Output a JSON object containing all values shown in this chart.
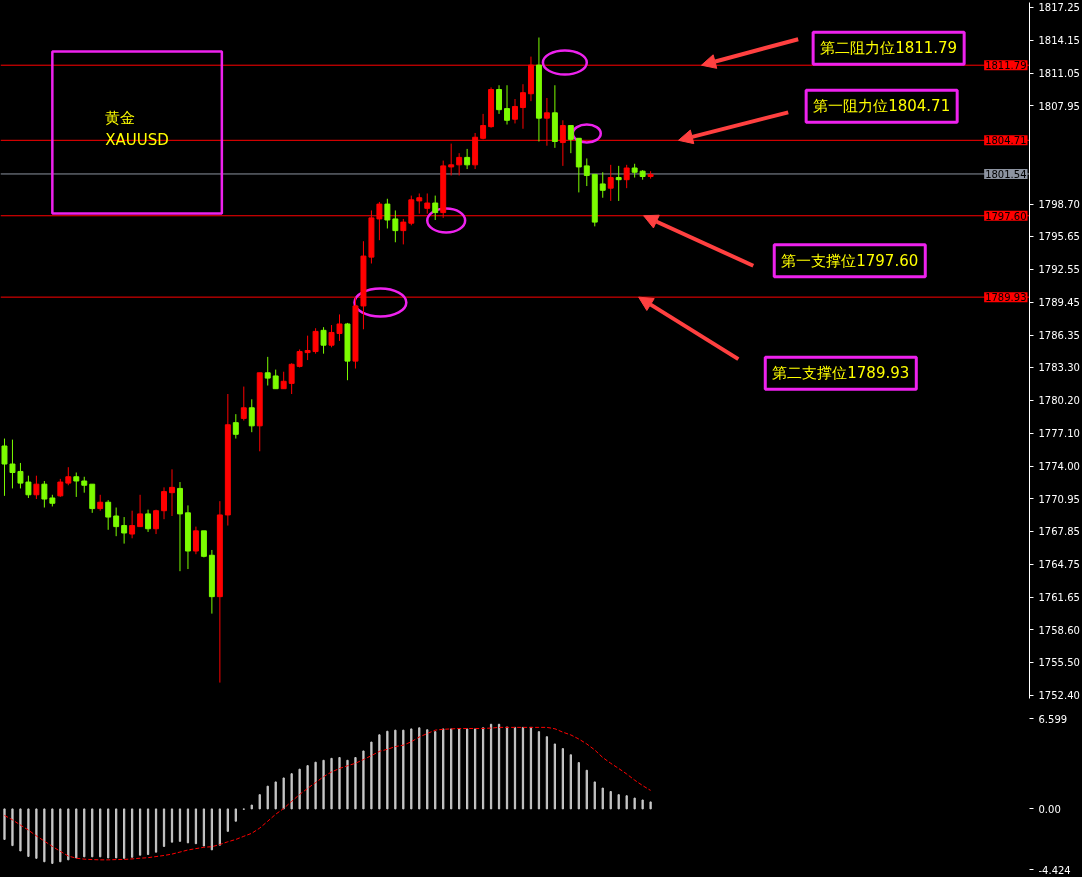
{
  "chart_data": [
    {
      "type": "candlestick",
      "title": "黄金",
      "subtitle": "XAUUSD",
      "categories": [
        null,
        null,
        null,
        null,
        null,
        null,
        null,
        null,
        null,
        null,
        null,
        null,
        null,
        null,
        null,
        null,
        null,
        null,
        null,
        null,
        null,
        null,
        null,
        null,
        null,
        null,
        null,
        null,
        null,
        null,
        null,
        null,
        null,
        null,
        null,
        null,
        null,
        null,
        null,
        null,
        null,
        null,
        null,
        null,
        null,
        null,
        null,
        null,
        null,
        null,
        null,
        null,
        null,
        null,
        null,
        null,
        null,
        null,
        null,
        null,
        null,
        null,
        null,
        null,
        null,
        null,
        null,
        null,
        null,
        null,
        null,
        null,
        null,
        null,
        null,
        null,
        null,
        null,
        null,
        null,
        null,
        null,
        null,
        null,
        null,
        null,
        null,
        null,
        null,
        null,
        null,
        null,
        null,
        null,
        null,
        null,
        null,
        null,
        null,
        null,
        null,
        null,
        null,
        null,
        null,
        null,
        null,
        null,
        null,
        null,
        null,
        null,
        null,
        null,
        null,
        null,
        null,
        null,
        null,
        null,
        null,
        null,
        null,
        null,
        null,
        null,
        null,
        null,
        null
      ],
      "ohlc": [
        [
          1775.9,
          1776.6,
          1771.2,
          1774.2
        ],
        [
          1774.2,
          1776.5,
          1771.9,
          1773.4
        ],
        [
          1773.5,
          1774.3,
          1771.9,
          1772.4
        ],
        [
          1772.5,
          1773.1,
          1771.0,
          1771.3
        ],
        [
          1771.3,
          1773.1,
          1770.9,
          1772.3
        ],
        [
          1772.3,
          1772.6,
          1770.1,
          1770.9
        ],
        [
          1771.0,
          1771.3,
          1770.2,
          1770.5
        ],
        [
          1771.2,
          1772.8,
          1771.1,
          1772.5
        ],
        [
          1772.4,
          1773.9,
          1772.2,
          1773.0
        ],
        [
          1773.0,
          1773.4,
          1771.1,
          1772.6
        ],
        [
          1772.6,
          1773.0,
          1771.5,
          1772.2
        ],
        [
          1772.3,
          1772.3,
          1769.6,
          1770.0
        ],
        [
          1770.0,
          1771.3,
          1769.8,
          1770.6
        ],
        [
          1770.6,
          1770.8,
          1768.0,
          1769.2
        ],
        [
          1769.3,
          1770.1,
          1767.4,
          1768.3
        ],
        [
          1768.4,
          1769.2,
          1766.7,
          1767.7
        ],
        [
          1767.6,
          1769.8,
          1767.2,
          1768.4
        ],
        [
          1768.3,
          1771.3,
          1768.3,
          1769.5
        ],
        [
          1769.5,
          1769.9,
          1767.8,
          1768.1
        ],
        [
          1768.1,
          1769.9,
          1767.6,
          1769.8
        ],
        [
          1769.8,
          1772.0,
          1769.0,
          1771.6
        ],
        [
          1771.5,
          1773.7,
          1769.3,
          1772.0
        ],
        [
          1771.9,
          1772.5,
          1764.1,
          1769.5
        ],
        [
          1769.6,
          1770.3,
          1764.3,
          1766.0
        ],
        [
          1766.0,
          1768.3,
          1765.7,
          1767.9
        ],
        [
          1767.9,
          1767.9,
          1765.4,
          1765.5
        ],
        [
          1765.6,
          1766.1,
          1760.1,
          1761.7
        ],
        [
          1761.7,
          1770.7,
          1753.6,
          1769.4
        ],
        [
          1769.4,
          1780.8,
          1768.4,
          1777.9
        ],
        [
          1778.1,
          1778.9,
          1776.6,
          1777.0
        ],
        [
          1778.5,
          1781.5,
          1778.3,
          1779.5
        ],
        [
          1779.5,
          1780.3,
          1777.2,
          1777.8
        ],
        [
          1777.8,
          1782.8,
          1775.4,
          1782.8
        ],
        [
          1782.8,
          1784.3,
          1781.6,
          1782.3
        ],
        [
          1782.5,
          1783.1,
          1781.3,
          1781.3
        ],
        [
          1781.3,
          1782.9,
          1781.3,
          1782.0
        ],
        [
          1781.8,
          1783.7,
          1780.8,
          1783.6
        ],
        [
          1783.4,
          1785.0,
          1783.3,
          1784.8
        ],
        [
          1784.7,
          1786.3,
          1784.0,
          1784.9
        ],
        [
          1784.8,
          1787.0,
          1784.6,
          1786.7
        ],
        [
          1786.8,
          1787.1,
          1784.6,
          1785.4
        ],
        [
          1785.4,
          1787.3,
          1785.2,
          1786.6
        ],
        [
          1786.5,
          1788.3,
          1785.8,
          1787.4
        ],
        [
          1787.4,
          1787.5,
          1782.1,
          1783.9
        ],
        [
          1783.9,
          1789.9,
          1783.2,
          1789.1
        ],
        [
          1789.1,
          1795.2,
          1786.9,
          1793.8
        ],
        [
          1793.7,
          1798.1,
          1793.1,
          1797.4
        ],
        [
          1797.3,
          1798.9,
          1795.3,
          1798.7
        ],
        [
          1798.7,
          1799.2,
          1796.4,
          1797.2
        ],
        [
          1797.3,
          1798.1,
          1795.1,
          1796.2
        ],
        [
          1796.2,
          1797.3,
          1794.9,
          1797.0
        ],
        [
          1796.9,
          1799.5,
          1796.7,
          1799.1
        ],
        [
          1799.0,
          1799.7,
          1797.8,
          1799.3
        ],
        [
          1798.3,
          1799.7,
          1797.8,
          1798.8
        ],
        [
          1798.8,
          1799.5,
          1797.2,
          1797.9
        ],
        [
          1797.9,
          1802.8,
          1797.4,
          1802.3
        ],
        [
          1802.2,
          1804.4,
          1801.4,
          1802.4
        ],
        [
          1802.4,
          1803.5,
          1801.4,
          1803.1
        ],
        [
          1803.1,
          1803.9,
          1802.0,
          1802.4
        ],
        [
          1802.4,
          1805.4,
          1802.0,
          1805.0
        ],
        [
          1804.9,
          1807.2,
          1804.8,
          1806.1
        ],
        [
          1806.0,
          1809.7,
          1805.9,
          1809.5
        ],
        [
          1809.5,
          1809.9,
          1807.2,
          1807.6
        ],
        [
          1807.7,
          1809.9,
          1806.2,
          1806.6
        ],
        [
          1806.7,
          1808.6,
          1806.3,
          1807.9
        ],
        [
          1807.8,
          1810.0,
          1805.8,
          1809.2
        ],
        [
          1809.1,
          1812.6,
          1808.4,
          1811.8
        ],
        [
          1811.8,
          1814.4,
          1804.6,
          1806.8
        ],
        [
          1806.8,
          1808.7,
          1804.2,
          1807.3
        ],
        [
          1807.3,
          1809.9,
          1804.0,
          1804.6
        ],
        [
          1804.5,
          1806.6,
          1802.3,
          1806.1
        ],
        [
          1806.1,
          1806.1,
          1803.5,
          1804.8
        ],
        [
          1804.9,
          1804.9,
          1799.8,
          1802.2
        ],
        [
          1802.3,
          1803.0,
          1800.4,
          1801.4
        ],
        [
          1801.5,
          1801.5,
          1796.6,
          1797.0
        ],
        [
          1800.6,
          1801.7,
          1799.3,
          1800.0
        ],
        [
          1800.2,
          1802.4,
          1799.0,
          1801.2
        ],
        [
          1801.2,
          1802.3,
          1799.0,
          1801.0
        ],
        [
          1801.0,
          1802.4,
          1800.2,
          1802.1
        ],
        [
          1802.1,
          1802.5,
          1801.2,
          1801.7
        ],
        [
          1801.8,
          1801.9,
          1801.0,
          1801.3
        ],
        [
          1801.3,
          1801.8,
          1801.1,
          1801.5
        ],
        null,
        null,
        null,
        null,
        null,
        null,
        null,
        null,
        null,
        null,
        null,
        null,
        null,
        null,
        null,
        null,
        null,
        null,
        null,
        null,
        null,
        null,
        null,
        null,
        null,
        null,
        null,
        null,
        null,
        null,
        null,
        null,
        null,
        null,
        null,
        null,
        null,
        null,
        null,
        null,
        null,
        null,
        null,
        null,
        null,
        null,
        null
      ],
      "colors": [
        "#7cfc00",
        "#7cfc00",
        "#7cfc00",
        "#7cfc00",
        "#ff0000",
        "#7cfc00",
        "#7cfc00",
        "#ff0000",
        "#ff0000",
        "#7cfc00",
        "#7cfc00",
        "#7cfc00",
        "#ff0000",
        "#7cfc00",
        "#7cfc00",
        "#7cfc00",
        "#ff0000",
        "#ff0000",
        "#7cfc00",
        "#ff0000",
        "#ff0000",
        "#ff0000",
        "#7cfc00",
        "#7cfc00",
        "#ff0000",
        "#7cfc00",
        "#7cfc00",
        "#ff0000",
        "#ff0000",
        "#7cfc00",
        "#ff0000",
        "#7cfc00",
        "#ff0000",
        "#7cfc00",
        "#7cfc00",
        "#ff0000",
        "#ff0000",
        "#ff0000",
        "#ff0000",
        "#ff0000",
        "#7cfc00",
        "#ff0000",
        "#ff0000",
        "#7cfc00",
        "#ff0000",
        "#ff0000",
        "#ff0000",
        "#ff0000",
        "#7cfc00",
        "#7cfc00",
        "#ff0000",
        "#ff0000",
        "#ff0000",
        "#ff0000",
        "#7cfc00",
        "#ff0000",
        "#ff0000",
        "#ff0000",
        "#7cfc00",
        "#ff0000",
        "#ff0000",
        "#ff0000",
        "#7cfc00",
        "#7cfc00",
        "#ff0000",
        "#ff0000",
        "#ff0000",
        "#7cfc00",
        "#ff0000",
        "#7cfc00",
        "#ff0000",
        "#7cfc00",
        "#7cfc00",
        "#7cfc00",
        "#7cfc00",
        "#7cfc00",
        "#ff0000",
        "#7cfc00",
        "#ff0000",
        "#7cfc00",
        "#7cfc00",
        "#ff0000",
        null,
        null,
        null,
        null,
        null,
        null,
        null,
        null,
        null,
        null,
        null,
        null,
        null,
        null,
        null,
        null,
        null,
        null,
        null,
        null,
        null,
        null,
        null,
        null,
        null,
        null,
        null,
        null,
        null,
        null,
        null,
        null,
        null,
        null,
        null,
        null,
        null,
        null,
        null,
        null,
        null,
        null,
        null,
        null,
        null,
        null,
        null
      ],
      "ylim": [
        1752.1,
        1817.7
      ],
      "yticks": [
        1817.25,
        1814.15,
        1811.05,
        1807.95,
        {
          "value": 1798.7,
          "label": "1798.70"
        },
        1795.65,
        1792.55,
        1789.45,
        1786.35,
        {
          "value": 1783.3,
          "label": "1783.30"
        },
        {
          "value": 1780.2,
          "label": "1780.20"
        },
        {
          "value": 1777.1,
          "label": "1777.10"
        },
        {
          "value": 1774.0,
          "label": "1774.00"
        },
        1770.95,
        1767.85,
        1764.75,
        1761.65,
        {
          "value": 1758.6,
          "label": "1758.60"
        },
        {
          "value": 1755.5,
          "label": "1755.50"
        },
        {
          "value": 1752.4,
          "label": "1752.40"
        }
      ],
      "tick_labels": "y",
      "ref_lines": [
        {
          "axis": "y",
          "value": 1811.79,
          "label": "1811.79",
          "color": "#ff0000"
        },
        {
          "axis": "y",
          "value": 1804.71,
          "label": "1804.71",
          "color": "#ff0000"
        },
        {
          "axis": "y",
          "value": 1801.54,
          "label": "1801.54",
          "color": "#8c93a0"
        },
        {
          "axis": "y",
          "value": 1797.6,
          "label": "1797.60",
          "color": "#ff0000"
        },
        {
          "axis": "y",
          "value": 1789.93,
          "label": "1789.93",
          "color": "#ff0000"
        }
      ],
      "annotations": [
        "第二阻力位1811.79",
        "第一阻力位1804.71",
        "第一支撑位1797.60",
        "第二支撑位1789.93"
      ]
    },
    {
      "type": "bar",
      "categories": [
        null,
        null,
        null,
        null,
        null,
        null,
        null,
        null,
        null,
        null,
        null,
        null,
        null,
        null,
        null,
        null,
        null,
        null,
        null,
        null,
        null,
        null,
        null,
        null,
        null,
        null,
        null,
        null,
        null,
        null,
        null,
        null,
        null,
        null,
        null,
        null,
        null,
        null,
        null,
        null,
        null,
        null,
        null,
        null,
        null,
        null,
        null,
        null,
        null,
        null,
        null,
        null,
        null,
        null,
        null,
        null,
        null,
        null,
        null,
        null,
        null,
        null,
        null,
        null,
        null,
        null,
        null,
        null,
        null,
        null,
        null,
        null,
        null,
        null,
        null,
        null,
        null,
        null,
        null,
        null,
        null,
        null,
        null,
        null,
        null,
        null,
        null,
        null,
        null,
        null,
        null,
        null,
        null,
        null,
        null,
        null,
        null,
        null,
        null,
        null,
        null,
        null,
        null,
        null,
        null,
        null,
        null,
        null,
        null,
        null,
        null,
        null,
        null,
        null,
        null,
        null,
        null,
        null,
        null,
        null,
        null,
        null,
        null,
        null,
        null,
        null,
        null,
        null,
        null
      ],
      "series": [
        {
          "type": "bar",
          "color": "#c8c8c8",
          "values": [
            -2.23,
            -2.68,
            -3.07,
            -3.47,
            -3.61,
            -3.86,
            -3.98,
            -3.86,
            -3.72,
            -3.58,
            -3.5,
            -3.5,
            -3.5,
            -3.58,
            -3.58,
            -3.61,
            -3.53,
            -3.38,
            -3.33,
            -3.16,
            -2.74,
            -2.43,
            -2.37,
            -2.48,
            -2.54,
            -2.71,
            -2.99,
            -2.65,
            -1.64,
            -0.9,
            -0.03,
            0.28,
            1.04,
            1.66,
            1.97,
            2.26,
            2.57,
            2.9,
            3.16,
            3.41,
            3.55,
            3.69,
            3.75,
            3.55,
            3.75,
            4.23,
            4.88,
            5.41,
            5.67,
            5.75,
            5.75,
            5.84,
            5.92,
            5.78,
            5.64,
            5.84,
            5.84,
            5.84,
            5.84,
            5.84,
            5.92,
            6.18,
            6.18,
            5.98,
            5.95,
            5.95,
            5.95,
            5.64,
            5.27,
            4.74,
            4.4,
            3.95,
            3.38,
            2.82,
            1.97,
            1.52,
            1.27,
            1.04,
            0.96,
            0.79,
            0.65,
            0.51,
            null,
            null,
            null,
            null,
            null,
            null,
            null,
            null,
            null,
            null,
            null,
            null,
            null,
            null,
            null,
            null,
            null,
            null,
            null,
            null,
            null,
            null,
            null,
            null,
            null,
            null,
            null,
            null,
            null,
            null,
            null,
            null,
            null,
            null,
            null,
            null,
            null,
            null,
            null,
            null,
            null,
            null,
            null,
            null,
            null,
            null,
            null
          ]
        },
        {
          "type": "line",
          "color": "#ff0000",
          "line_style": "dashed",
          "values": [
            -0.48,
            -0.8,
            -1.18,
            -1.55,
            -1.97,
            -2.35,
            -2.74,
            -3.1,
            -3.44,
            -3.6,
            -3.67,
            -3.7,
            -3.72,
            -3.72,
            -3.7,
            -3.69,
            -3.65,
            -3.6,
            -3.56,
            -3.48,
            -3.4,
            -3.3,
            -3.15,
            -3.0,
            -2.9,
            -2.8,
            -2.76,
            -2.6,
            -2.4,
            -2.23,
            -2.0,
            -1.78,
            -1.4,
            -0.9,
            -0.39,
            0.03,
            0.55,
            1.05,
            1.5,
            1.92,
            2.35,
            2.7,
            2.95,
            3.15,
            3.33,
            3.6,
            3.89,
            4.2,
            4.35,
            4.55,
            4.65,
            4.9,
            5.25,
            5.5,
            5.75,
            5.81,
            5.84,
            5.87,
            5.87,
            5.87,
            5.87,
            5.9,
            5.95,
            5.95,
            5.95,
            5.95,
            5.95,
            5.95,
            5.95,
            5.85,
            5.6,
            5.4,
            5.1,
            4.74,
            4.3,
            3.75,
            3.33,
            2.95,
            2.55,
            2.1,
            1.7,
            1.35,
            null,
            null,
            null,
            null,
            null,
            null,
            null,
            null,
            null,
            null,
            null,
            null,
            null,
            null,
            null,
            null,
            null,
            null,
            null,
            null,
            null,
            null,
            null,
            null,
            null,
            null,
            null,
            null,
            null,
            null,
            null,
            null,
            null,
            null,
            null,
            null,
            null,
            null,
            null,
            null,
            null,
            null,
            null,
            null,
            null,
            null,
            null
          ]
        }
      ],
      "ylim": [
        -4.424,
        6.599
      ],
      "yticks": [
        6.599,
        {
          "value": 0,
          "label": "0.00"
        },
        -4.424
      ],
      "tick_labels": "y"
    }
  ]
}
